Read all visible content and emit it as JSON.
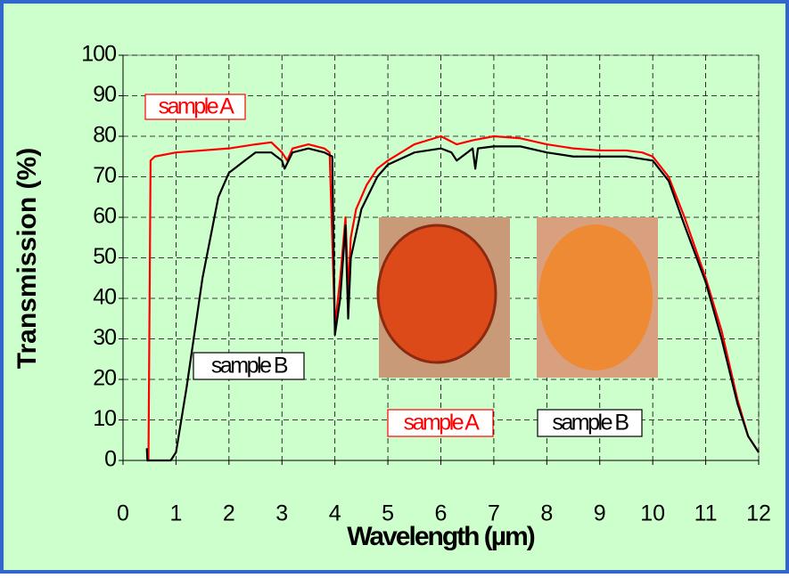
{
  "chart_data": {
    "type": "line",
    "x_label": "Wavelength (µm)",
    "y_label": "Transmission (%)",
    "xlim": [
      0,
      12
    ],
    "xticks": [
      0,
      1,
      2,
      3,
      4,
      5,
      6,
      7,
      8,
      9,
      10,
      11,
      12
    ],
    "ylim": [
      0,
      100
    ],
    "yticks": [
      0,
      10,
      20,
      30,
      40,
      50,
      60,
      70,
      80,
      90,
      100
    ],
    "grid": true,
    "series": [
      {
        "name": "sample A",
        "color": "#ff0000",
        "x": [
          0.45,
          0.48,
          0.52,
          0.6,
          1.0,
          2.0,
          2.5,
          2.8,
          3.0,
          3.1,
          3.2,
          3.5,
          3.8,
          3.9,
          4.0,
          4.1,
          4.2,
          4.25,
          4.3,
          4.4,
          4.6,
          4.8,
          5.0,
          5.5,
          6.0,
          6.3,
          6.6,
          7.0,
          7.5,
          8.0,
          8.5,
          9.0,
          9.5,
          9.8,
          10.0,
          10.3,
          10.6,
          11.0,
          11.3,
          11.6,
          11.8,
          12.0
        ],
        "values": [
          0,
          0,
          74,
          75,
          76,
          77,
          78,
          78.5,
          76,
          74,
          77,
          78,
          77,
          76,
          33,
          45,
          60,
          42,
          55,
          62,
          68,
          72,
          74,
          78,
          80,
          78,
          79,
          80,
          79.5,
          78,
          77,
          76.5,
          76.5,
          76,
          75,
          70,
          60,
          45,
          32,
          15,
          6,
          2
        ]
      },
      {
        "name": "sample B",
        "color": "#000000",
        "x": [
          0.45,
          0.46,
          0.5,
          0.9,
          1.0,
          1.2,
          1.5,
          1.8,
          2.0,
          2.3,
          2.5,
          2.8,
          3.0,
          3.05,
          3.2,
          3.5,
          3.8,
          3.95,
          4.0,
          4.1,
          4.2,
          4.25,
          4.3,
          4.5,
          4.8,
          5.0,
          5.5,
          6.0,
          6.2,
          6.3,
          6.5,
          6.6,
          6.65,
          6.7,
          7.0,
          7.5,
          8.0,
          8.5,
          9.0,
          9.5,
          10.0,
          10.3,
          10.6,
          11.0,
          11.3,
          11.6,
          11.8,
          12.0
        ],
        "values": [
          3,
          0,
          0,
          0,
          2,
          18,
          45,
          65,
          71,
          74,
          76,
          76,
          74,
          72,
          76,
          77,
          76,
          75,
          31,
          40,
          58,
          35,
          50,
          62,
          70,
          73,
          76,
          77,
          76,
          74,
          76,
          77,
          72,
          77,
          77.5,
          77.5,
          76,
          75,
          75,
          75,
          74,
          69,
          58,
          44,
          30,
          14,
          6,
          2
        ]
      }
    ]
  }
}
